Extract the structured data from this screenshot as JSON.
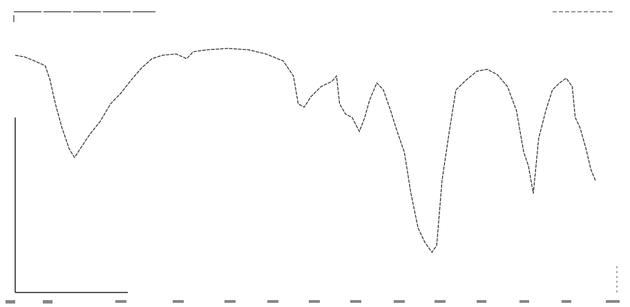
{
  "chart_data": {
    "type": "line",
    "color": "#222222",
    "xlim": [
      0,
      100
    ],
    "ylim": [
      0,
      100
    ],
    "series": [
      {
        "color": "#222222",
        "x": [
          0,
          1.5,
          3.2,
          5.0,
          5.8,
          6.7,
          7.8,
          9.0,
          9.9,
          11.1,
          12.4,
          14.2,
          15.9,
          17.6,
          19.4,
          21.1,
          22.8,
          24.5,
          26.8,
          28.6,
          29.7,
          32.0,
          35.5,
          38.9,
          41.8,
          44.7,
          46.4,
          47.2,
          48.2,
          49.3,
          51.0,
          52.8,
          53.6,
          54.1,
          55.1,
          56.2,
          57.4,
          58.3,
          59.1,
          60.3,
          61.4,
          62.6,
          63.7,
          64.9,
          66.0,
          67.2,
          68.3,
          69.5,
          70.3,
          71.2,
          72.4,
          73.5,
          75.3,
          77.0,
          78.7,
          80.4,
          82.1,
          83.6,
          84.8,
          85.6,
          86.4,
          87.3,
          88.5,
          89.6,
          90.8,
          91.9,
          92.9,
          93.4,
          94.2,
          95.2,
          96.0,
          96.8
        ],
        "values": [
          85.1,
          84.6,
          83.1,
          81.4,
          76.4,
          67.7,
          59.1,
          51.6,
          48.4,
          52.4,
          56.6,
          61.5,
          67.7,
          71.5,
          76.4,
          80.6,
          83.9,
          85.1,
          85.6,
          83.9,
          86.4,
          87.1,
          87.6,
          87.1,
          85.6,
          83.1,
          77.7,
          67.7,
          66.5,
          70.2,
          73.9,
          75.7,
          77.7,
          67.7,
          64.0,
          62.8,
          57.8,
          62.8,
          69.0,
          75.2,
          72.7,
          65.3,
          57.8,
          50.4,
          35.5,
          23.1,
          18.1,
          14.4,
          16.9,
          40.4,
          57.8,
          72.7,
          76.4,
          79.4,
          80.1,
          78.2,
          73.9,
          65.3,
          50.4,
          45.4,
          35.5,
          55.3,
          65.3,
          72.7,
          75.2,
          76.9,
          73.9,
          62.8,
          59.1,
          51.6,
          44.2,
          40.0
        ]
      }
    ]
  }
}
